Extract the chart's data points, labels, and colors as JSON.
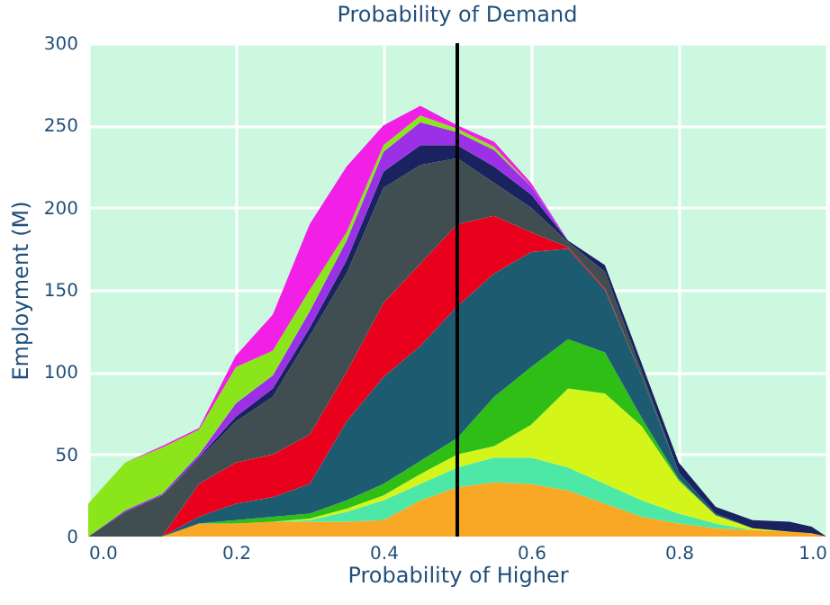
{
  "chart_data": {
    "type": "area",
    "stacked": true,
    "title": "Probability of Demand",
    "xlabel": "Probability of Higher",
    "ylabel": "Employment (M)",
    "x": [
      0,
      0.05,
      0.1,
      0.15,
      0.2,
      0.25,
      0.3,
      0.35,
      0.4,
      0.45,
      0.5,
      0.55,
      0.6,
      0.65,
      0.7,
      0.75,
      0.8,
      0.85,
      0.9,
      0.95,
      0.98,
      1.0
    ],
    "series": [
      {
        "color": "#f9a825",
        "values": [
          0,
          0,
          0,
          8,
          8,
          9,
          9,
          9,
          10,
          22,
          30,
          33,
          32,
          28,
          20,
          12,
          8,
          5,
          4,
          3,
          2,
          0
        ]
      },
      {
        "color": "#4ee8a6",
        "values": [
          0,
          0,
          0,
          0,
          0,
          0,
          1,
          6,
          12,
          10,
          12,
          15,
          16,
          14,
          12,
          10,
          6,
          3,
          0,
          0,
          0,
          0
        ]
      },
      {
        "color": "#d4f51a",
        "values": [
          0,
          0,
          0,
          0,
          0,
          0,
          1,
          2,
          3,
          6,
          8,
          7,
          20,
          48,
          55,
          45,
          20,
          5,
          1,
          0,
          0,
          0
        ]
      },
      {
        "color": "#2fbe16",
        "values": [
          0,
          0,
          0,
          0,
          2,
          3,
          3,
          5,
          7,
          8,
          10,
          30,
          35,
          30,
          25,
          5,
          1,
          0,
          0,
          0,
          0,
          0
        ]
      },
      {
        "color": "#1d5b70",
        "values": [
          0,
          0,
          0,
          4,
          10,
          12,
          18,
          48,
          65,
          70,
          80,
          75,
          70,
          55,
          38,
          25,
          4,
          1,
          0,
          0,
          0,
          0
        ]
      },
      {
        "color": "#e8001c",
        "values": [
          0,
          0,
          0,
          20,
          25,
          26,
          30,
          30,
          45,
          50,
          50,
          35,
          12,
          1,
          1,
          0,
          0,
          0,
          0,
          0,
          0,
          0
        ]
      },
      {
        "color": "#404e52",
        "values": [
          0,
          15,
          25,
          15,
          25,
          35,
          60,
          60,
          70,
          60,
          40,
          20,
          15,
          3,
          10,
          3,
          0,
          0,
          0,
          0,
          0,
          0
        ]
      },
      {
        "color": "#1a2260",
        "values": [
          0,
          0,
          0,
          1,
          3,
          5,
          5,
          8,
          10,
          12,
          8,
          10,
          8,
          1,
          4,
          5,
          6,
          4,
          5,
          6,
          4,
          0
        ]
      },
      {
        "color": "#9b30e6",
        "values": [
          0,
          1,
          1,
          2,
          8,
          8,
          10,
          12,
          12,
          14,
          8,
          10,
          5,
          0,
          0,
          0,
          0,
          0,
          0,
          0,
          0,
          0
        ]
      },
      {
        "color": "#8ae61a",
        "values": [
          20,
          29,
          28,
          15,
          22,
          15,
          13,
          5,
          4,
          4,
          2,
          2,
          0,
          0,
          0,
          0,
          0,
          0,
          0,
          0,
          0,
          0
        ]
      },
      {
        "color": "#f21fe6",
        "values": [
          0,
          0,
          1,
          1,
          7,
          22,
          40,
          40,
          12,
          6,
          2,
          3,
          2,
          0,
          0,
          0,
          0,
          0,
          0,
          0,
          0,
          0
        ]
      }
    ],
    "xlim": [
      0,
      1
    ],
    "xticks": [
      {
        "value": 0,
        "label": "0.0"
      },
      {
        "value": 0.2,
        "label": "0.2"
      },
      {
        "value": 0.4,
        "label": "0.4"
      },
      {
        "value": 0.6,
        "label": "0.6"
      },
      {
        "value": 0.8,
        "label": "0.8"
      },
      {
        "value": 1,
        "label": "1.0"
      }
    ],
    "ylim": [
      0,
      300
    ],
    "yticks": [
      0,
      50,
      100,
      150,
      200,
      250,
      300
    ],
    "ref_lines": [
      {
        "axis": "x",
        "value": 0.5,
        "color": "#000000"
      }
    ],
    "grid": true,
    "legend": false
  }
}
